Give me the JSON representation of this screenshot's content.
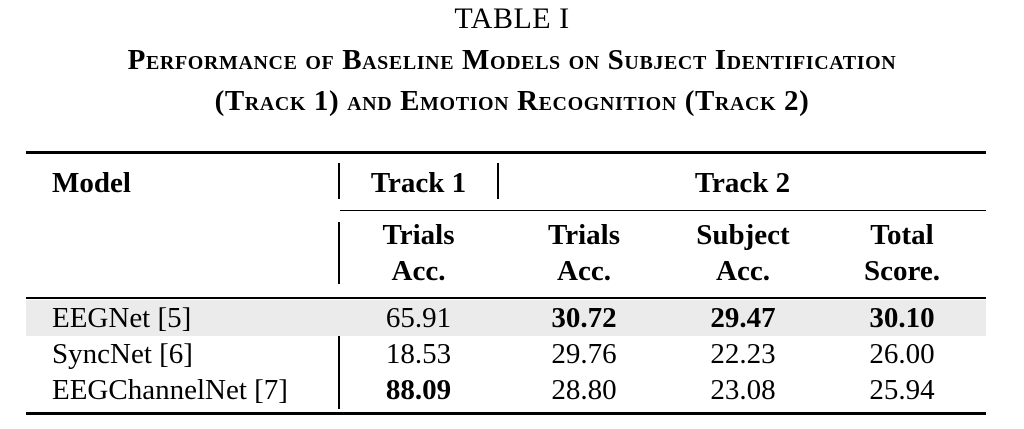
{
  "caption": {
    "label": "TABLE I",
    "title_line1": "Performance of Baseline Models on Subject Identification",
    "title_line2": "(Track 1) and Emotion Recognition (Track 2)"
  },
  "header": {
    "model": "Model",
    "track1": "Track 1",
    "track2": "Track 2",
    "col1_line1": "Trials",
    "col1_line2": "Acc.",
    "col2_line1": "Trials",
    "col2_line2": "Acc.",
    "col3_line1": "Subject",
    "col3_line2": "Acc.",
    "col4_line1": "Total",
    "col4_line2": "Score."
  },
  "rows": [
    {
      "model": "EEGNet [5]",
      "t1_trials": "65.91",
      "t2_trials": "30.72",
      "t2_subject": "29.47",
      "t2_total": "30.10"
    },
    {
      "model": "SyncNet [6]",
      "t1_trials": "18.53",
      "t2_trials": "29.76",
      "t2_subject": "22.23",
      "t2_total": "26.00"
    },
    {
      "model": "EEGChannelNet [7]",
      "t1_trials": "88.09",
      "t2_trials": "28.80",
      "t2_subject": "23.08",
      "t2_total": "25.94"
    }
  ]
}
